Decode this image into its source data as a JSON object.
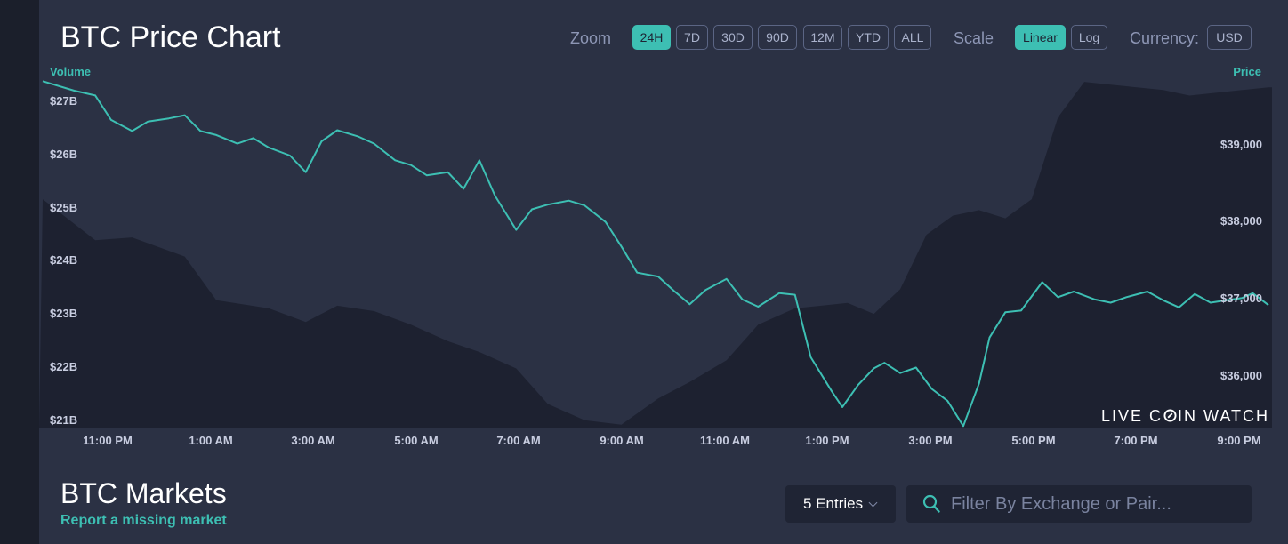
{
  "page": {
    "title": "BTC Price Chart"
  },
  "controls": {
    "zoom_label": "Zoom",
    "zoom_options": [
      "24H",
      "7D",
      "30D",
      "90D",
      "12M",
      "YTD",
      "ALL"
    ],
    "zoom_selected": "24H",
    "scale_label": "Scale",
    "scale_options": [
      "Linear",
      "Log"
    ],
    "scale_selected": "Linear",
    "currency_label": "Currency:",
    "currency_value": "USD"
  },
  "chart_data": {
    "type": "line",
    "left_axis_title": "Volume",
    "right_axis_title": "Price",
    "volume_ticks": [
      "$27B",
      "$26B",
      "$25B",
      "$24B",
      "$23B",
      "$22B",
      "$21B"
    ],
    "price_ticks": [
      "$39,000",
      "$38,000",
      "$37,000",
      "$36,000"
    ],
    "x_ticks": [
      "11:00 PM",
      "1:00 AM",
      "3:00 AM",
      "5:00 AM",
      "7:00 AM",
      "9:00 AM",
      "11:00 AM",
      "1:00 PM",
      "3:00 PM",
      "5:00 PM",
      "7:00 PM",
      "9:00 PM"
    ],
    "y_price_range": [
      35350,
      39800
    ],
    "y_volume_range": [
      20.85,
      27.3
    ],
    "series": [
      {
        "name": "Price",
        "x_hours": [
          0,
          0.6,
          1.0,
          1.3,
          1.7,
          2.0,
          2.4,
          2.7,
          3.0,
          3.3,
          3.7,
          4.0,
          4.3,
          4.7,
          5.0,
          5.3,
          5.6,
          6.0,
          6.3,
          6.7,
          7.0,
          7.3,
          7.7,
          8.0,
          8.3,
          8.6,
          9.0,
          9.3,
          9.6,
          10.0,
          10.3,
          10.7,
          11.0,
          11.3,
          11.7,
          12.0,
          12.3,
          12.6,
          13.0,
          13.3,
          13.6,
          14.0,
          14.3,
          14.6,
          15.0,
          15.2,
          15.5,
          15.8,
          16.0,
          16.3,
          16.6,
          16.9,
          17.2,
          17.5,
          17.8,
          18.0,
          18.3,
          18.6,
          19.0,
          19.3,
          19.6,
          20.0,
          20.3,
          20.6,
          21.0,
          21.3,
          21.6,
          21.9,
          22.2,
          22.5,
          22.8,
          23.0,
          23.3
        ],
        "values": [
          39740,
          39620,
          39560,
          39250,
          39110,
          39230,
          39270,
          39310,
          39110,
          39060,
          38950,
          39020,
          38900,
          38800,
          38590,
          38980,
          39120,
          39040,
          38950,
          38740,
          38680,
          38550,
          38590,
          38380,
          38740,
          38290,
          37860,
          38120,
          38180,
          38230,
          38170,
          37960,
          37650,
          37320,
          37270,
          37090,
          36920,
          37100,
          37240,
          36980,
          36890,
          37060,
          37040,
          36250,
          35820,
          35620,
          35900,
          36110,
          36180,
          36050,
          36120,
          35850,
          35700,
          35380,
          35920,
          36500,
          36820,
          36840,
          37200,
          37010,
          37080,
          36980,
          36940,
          37010,
          37080,
          36970,
          36880,
          37050,
          36940,
          36970,
          37000,
          37060,
          36910
        ]
      },
      {
        "name": "Volume",
        "x_hours": [
          0,
          1.0,
          1.7,
          2.7,
          3.3,
          4.3,
          5.0,
          5.6,
          6.3,
          7.0,
          7.7,
          8.3,
          9.0,
          9.6,
          10.3,
          11.0,
          11.7,
          12.3,
          13.0,
          13.6,
          14.3,
          14.8,
          15.3,
          15.8,
          16.3,
          16.8,
          17.3,
          17.8,
          18.3,
          18.8,
          19.3,
          19.8,
          20.3,
          20.8,
          21.3,
          21.8,
          22.3,
          22.8,
          23.3
        ],
        "values": [
          25.05,
          24.3,
          24.35,
          24.0,
          23.2,
          23.05,
          22.8,
          23.1,
          23.0,
          22.75,
          22.45,
          22.25,
          21.95,
          21.3,
          21.0,
          20.92,
          21.4,
          21.7,
          22.1,
          22.75,
          23.05,
          23.1,
          23.15,
          22.95,
          23.4,
          24.4,
          24.75,
          24.85,
          24.7,
          25.05,
          26.55,
          27.2,
          27.15,
          27.1,
          27.05,
          26.95,
          27.0,
          27.05,
          27.1
        ]
      }
    ]
  },
  "watermark": {
    "left": "LIVE C",
    "right": "IN WATCH"
  },
  "markets": {
    "title": "BTC Markets",
    "report_link": "Report a missing market",
    "entries_label": "5 Entries",
    "search_placeholder": "Filter By Exchange or Pair..."
  }
}
